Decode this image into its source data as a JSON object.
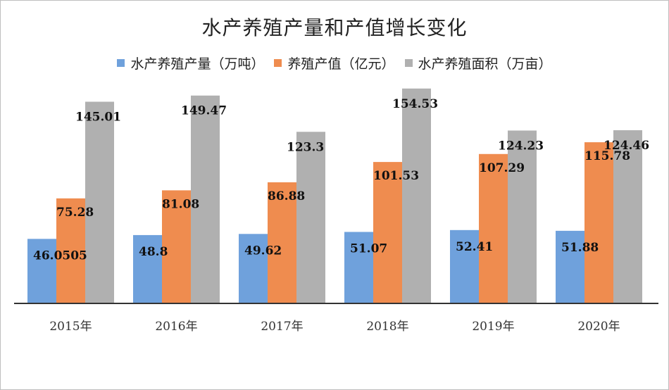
{
  "chart_data": {
    "type": "bar",
    "title": "水产养殖产量和产值增长变化",
    "categories": [
      "2015年",
      "2016年",
      "2017年",
      "2018年",
      "2019年",
      "2020年"
    ],
    "series": [
      {
        "name": "水产养殖产量（万吨）",
        "color": "#6fa1dc",
        "values": [
          46.0505,
          48.8,
          49.62,
          51.07,
          52.41,
          51.88
        ],
        "labels": [
          "46.0505",
          "48.8",
          "49.62",
          "51.07",
          "52.41",
          "51.88"
        ]
      },
      {
        "name": "养殖产值（亿元）",
        "color": "#ef8c4f",
        "values": [
          75.28,
          81.08,
          86.88,
          101.53,
          107.29,
          115.78
        ],
        "labels": [
          "75.28",
          "81.08",
          "86.88",
          "101.53",
          "107.29",
          "115.78"
        ]
      },
      {
        "name": "水产养殖面积（万亩）",
        "color": "#b0b0b0",
        "values": [
          145.01,
          149.47,
          123.3,
          154.53,
          124.23,
          124.46
        ],
        "labels": [
          "145.01",
          "149.47",
          "123.3",
          "154.53",
          "124.23",
          "124.46"
        ]
      }
    ],
    "ylim": [
      0,
      160
    ],
    "legend_position": "top",
    "grid": false
  }
}
